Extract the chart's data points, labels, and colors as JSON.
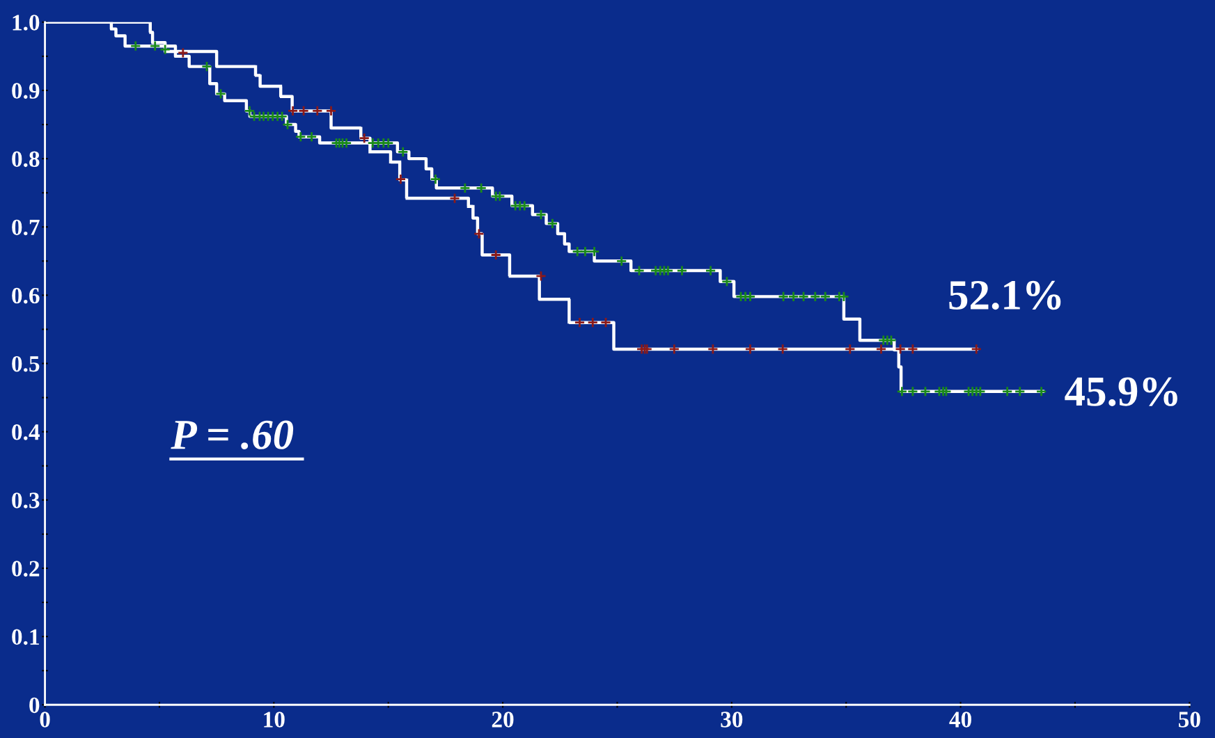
{
  "chart_data": {
    "type": "step",
    "xlim": [
      0,
      50
    ],
    "ylim": [
      0,
      1.0
    ],
    "xticks": [
      0,
      {
        "value": 5,
        "label": null
      },
      10,
      {
        "value": 15,
        "label": null
      },
      20,
      {
        "value": 25,
        "label": null
      },
      30,
      {
        "value": 35,
        "label": null
      },
      40,
      {
        "value": 45,
        "label": null
      },
      50
    ],
    "yticks": [
      0,
      {
        "value": 0.05,
        "label": null
      },
      0.1,
      {
        "value": 0.15,
        "label": null
      },
      0.2,
      {
        "value": 0.25,
        "label": null
      },
      0.3,
      {
        "value": 0.35,
        "label": null
      },
      0.4,
      {
        "value": 0.45,
        "label": null
      },
      0.5,
      {
        "value": 0.55,
        "label": null
      },
      0.6,
      {
        "value": 0.65,
        "label": null
      },
      0.7,
      {
        "value": 0.75,
        "label": null
      },
      0.8,
      {
        "value": 0.85,
        "label": null
      },
      0.9,
      {
        "value": 0.95,
        "label": null
      },
      {
        "value": 1.0,
        "label": "1.0"
      }
    ],
    "grid": false,
    "legend": false,
    "series": [
      {
        "color": "#ffffff",
        "line_style": "solid",
        "x": [
          0,
          2.9,
          3.1,
          3.5,
          5.7,
          6.3,
          7.2,
          7.5,
          7.85,
          8.8,
          8.95,
          10.55,
          10.95,
          11.1,
          12.0,
          15.4,
          15.9,
          16.65,
          16.9,
          17.1,
          19.55,
          20.4,
          21.3,
          21.9,
          22.4,
          22.7,
          22.9,
          24.0,
          25.6,
          29.5,
          30.1,
          34.9,
          35.6,
          37.1,
          37.3,
          37.4,
          43.6
        ],
        "values": [
          1.0,
          0.99,
          0.98,
          0.965,
          0.95,
          0.935,
          0.91,
          0.895,
          0.885,
          0.87,
          0.862,
          0.85,
          0.84,
          0.832,
          0.823,
          0.81,
          0.8,
          0.785,
          0.77,
          0.757,
          0.745,
          0.731,
          0.718,
          0.705,
          0.69,
          0.675,
          0.664,
          0.65,
          0.636,
          0.62,
          0.598,
          0.565,
          0.534,
          0.52,
          0.495,
          0.459,
          0.459
        ]
      },
      {
        "color": "#ffffff",
        "line_style": "dotted",
        "x": [
          0,
          4.6,
          4.7,
          5.25,
          7.5,
          9.2,
          9.4,
          10.3,
          10.8,
          12.5,
          13.8,
          14.2,
          15.1,
          15.5,
          15.8,
          18.5,
          18.7,
          18.9,
          19.1,
          20.3,
          21.6,
          22.9,
          24.85,
          40.7
        ],
        "values": [
          1.0,
          0.985,
          0.97,
          0.957,
          0.935,
          0.922,
          0.906,
          0.891,
          0.87,
          0.845,
          0.83,
          0.81,
          0.795,
          0.769,
          0.742,
          0.73,
          0.713,
          0.69,
          0.659,
          0.628,
          0.594,
          0.56,
          0.521,
          0.521
        ]
      },
      {
        "type": "scatter",
        "color": "#1a8a1a",
        "marker": "cross",
        "x": [
          3.96,
          4.81,
          5.25,
          7.07,
          7.68,
          8.94,
          9.14,
          9.38,
          9.55,
          9.75,
          9.95,
          10.16,
          10.36,
          10.6,
          11.17,
          11.65,
          12.73,
          12.86,
          13.0,
          13.17,
          14.32,
          14.56,
          14.79,
          15.0,
          15.64,
          17.06,
          18.35,
          19.06,
          19.7,
          19.87,
          20.55,
          20.75,
          20.95,
          21.67,
          22.17,
          23.26,
          23.6,
          24.0,
          25.19,
          25.96,
          26.68,
          26.88,
          27.05,
          27.22,
          27.83,
          29.08,
          29.79,
          30.4,
          30.6,
          30.81,
          32.26,
          32.7,
          33.14,
          33.65,
          34.09,
          34.7,
          34.9,
          36.63,
          36.8,
          36.97,
          37.44,
          37.91,
          38.46,
          39.07,
          39.24,
          39.37,
          40.35,
          40.52,
          40.69,
          40.86,
          42.04,
          42.59,
          43.53
        ],
        "values": [
          0.965,
          0.965,
          0.96,
          0.935,
          0.895,
          0.87,
          0.862,
          0.862,
          0.862,
          0.862,
          0.862,
          0.862,
          0.862,
          0.85,
          0.832,
          0.832,
          0.823,
          0.823,
          0.823,
          0.823,
          0.823,
          0.823,
          0.823,
          0.823,
          0.81,
          0.77,
          0.757,
          0.757,
          0.745,
          0.745,
          0.731,
          0.731,
          0.731,
          0.718,
          0.705,
          0.664,
          0.664,
          0.664,
          0.65,
          0.636,
          0.636,
          0.636,
          0.636,
          0.636,
          0.636,
          0.636,
          0.62,
          0.598,
          0.598,
          0.598,
          0.598,
          0.598,
          0.598,
          0.598,
          0.598,
          0.598,
          0.598,
          0.534,
          0.534,
          0.534,
          0.459,
          0.459,
          0.459,
          0.459,
          0.459,
          0.459,
          0.459,
          0.459,
          0.459,
          0.459,
          0.459,
          0.459,
          0.459
        ]
      },
      {
        "type": "scatter",
        "color": "#8b1a1a",
        "marker": "cross",
        "x": [
          6.03,
          10.83,
          11.3,
          11.9,
          12.5,
          13.95,
          15.54,
          17.9,
          18.96,
          19.7,
          21.67,
          23.36,
          23.93,
          24.5,
          26.07,
          26.2,
          26.3,
          27.49,
          29.18,
          30.81,
          32.23,
          35.17,
          36.53,
          37.37,
          37.91,
          40.69
        ],
        "values": [
          0.955,
          0.87,
          0.87,
          0.87,
          0.87,
          0.83,
          0.77,
          0.742,
          0.69,
          0.659,
          0.628,
          0.56,
          0.56,
          0.56,
          0.521,
          0.521,
          0.521,
          0.521,
          0.521,
          0.521,
          0.521,
          0.521,
          0.521,
          0.521,
          0.521,
          0.521
        ]
      }
    ],
    "annotations": [
      "P = .60",
      {
        "text": "52.1%",
        "x": 40.7,
        "y": 0.521
      },
      {
        "text": "45.9%",
        "x": 43.6,
        "y": 0.459
      }
    ]
  }
}
